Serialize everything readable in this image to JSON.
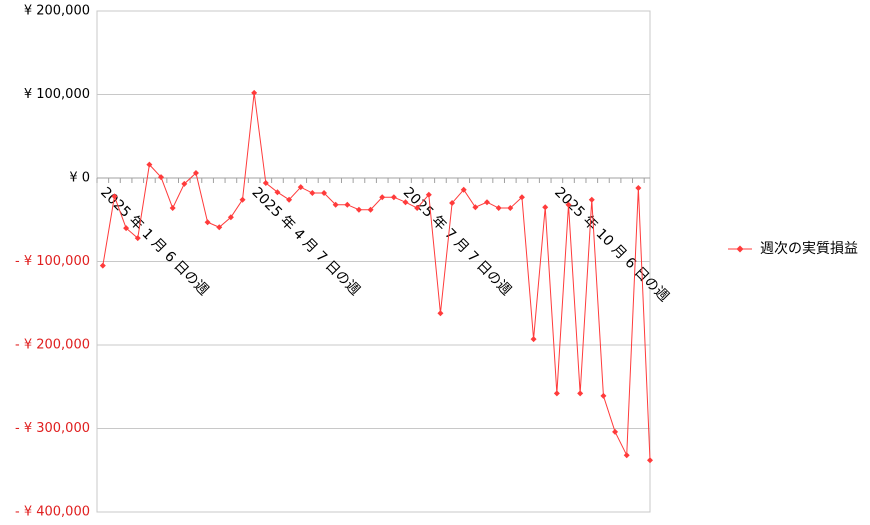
{
  "chart_data": {
    "type": "line",
    "categories": [
      "2025 年 1 月 6 日の週",
      null,
      null,
      null,
      null,
      null,
      null,
      null,
      null,
      null,
      null,
      null,
      null,
      "2025 年 4 月 7 日の週",
      null,
      null,
      null,
      null,
      null,
      null,
      null,
      null,
      null,
      null,
      null,
      null,
      "2025 年 7 月 7 日の週",
      null,
      null,
      null,
      null,
      null,
      null,
      null,
      null,
      null,
      null,
      null,
      null,
      "2025 年 10 月 6 日の週",
      null,
      null,
      null,
      null,
      null,
      null,
      null,
      null
    ],
    "series": [
      {
        "name": "週次の実質損益",
        "color": "#ff3b3b",
        "values": [
          -105000,
          -22000,
          -60000,
          -72000,
          16000,
          1000,
          -36000,
          -7000,
          6000,
          -53000,
          -59000,
          -47000,
          -26000,
          102000,
          -6000,
          -17000,
          -26000,
          -11000,
          -18000,
          -18000,
          -32000,
          -32000,
          -38000,
          -38000,
          -23000,
          -23000,
          -29000,
          -36000,
          -20000,
          -162000,
          -30000,
          -14000,
          -35000,
          -29000,
          -36000,
          -36000,
          -23000,
          -193000,
          -35000,
          -258000,
          -32000,
          -258000,
          -26000,
          -261000,
          -304000,
          -332000,
          -12000,
          -338000
        ]
      }
    ],
    "ylim": [
      -400000,
      200000
    ],
    "yticks": [
      {
        "value": -400000,
        "label": "- ¥ 400,000"
      },
      {
        "value": -300000,
        "label": "- ¥ 300,000"
      },
      {
        "value": -200000,
        "label": "- ¥ 200,000"
      },
      {
        "value": -100000,
        "label": "- ¥ 100,000"
      },
      {
        "value": 0,
        "label": "¥ 0"
      },
      {
        "value": 100000,
        "label": "¥ 100,000"
      },
      {
        "value": 200000,
        "label": "¥ 200,000"
      }
    ],
    "negative_tick_color": "#e02020",
    "grid": true,
    "legend": "right"
  }
}
